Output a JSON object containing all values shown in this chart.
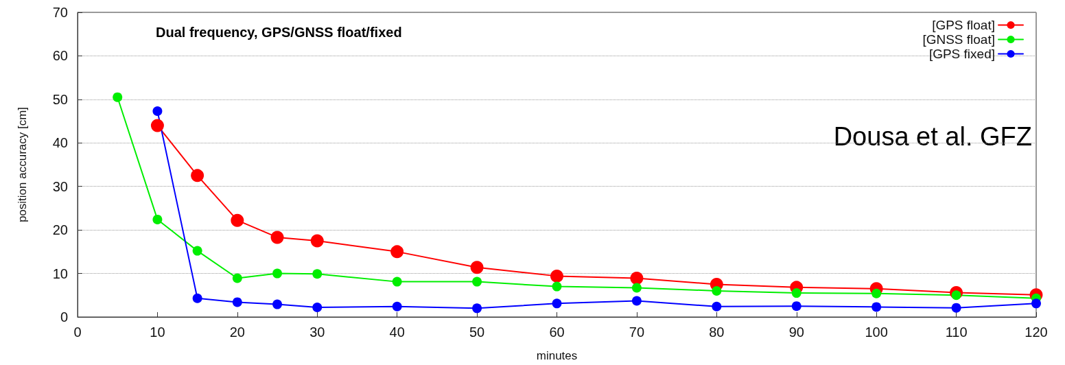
{
  "chart_data": {
    "type": "line",
    "title": "Dual frequency, GPS/GNSS float/fixed",
    "xlabel": "minutes",
    "ylabel": "position accuracy [cm]",
    "annotations": [
      "Dousa et al. GFZ"
    ],
    "x": [
      5,
      10,
      15,
      20,
      25,
      30,
      40,
      50,
      60,
      70,
      80,
      90,
      100,
      110,
      120
    ],
    "series": [
      {
        "name": "[GPS float]",
        "color": "#ff0000",
        "values": [
          null,
          44,
          32.5,
          22.2,
          18.3,
          17.5,
          15,
          11.4,
          9.4,
          8.9,
          7.5,
          6.8,
          6.5,
          5.6,
          5.1
        ]
      },
      {
        "name": "[GNSS float]",
        "color": "#00ee00",
        "values": [
          50.5,
          22.4,
          15.2,
          8.9,
          10,
          9.9,
          8.1,
          8.1,
          7,
          6.7,
          6,
          5.5,
          5.4,
          5,
          4.3
        ]
      },
      {
        "name": "[GPS fixed]",
        "color": "#0000ff",
        "values": [
          null,
          47.3,
          4.3,
          3.4,
          2.9,
          2.2,
          2.4,
          2,
          3.1,
          3.7,
          2.4,
          2.5,
          2.3,
          2.1,
          3.1
        ]
      }
    ],
    "xlim": [
      0,
      120
    ],
    "xticks": [
      0,
      10,
      20,
      30,
      40,
      50,
      60,
      70,
      80,
      90,
      100,
      110,
      120
    ],
    "ylim": [
      0,
      70
    ],
    "yticks": [
      0,
      10,
      20,
      30,
      40,
      50,
      60,
      70
    ],
    "grid": "y",
    "legend": "top right",
    "marker": "circle",
    "line_style": "solid"
  }
}
